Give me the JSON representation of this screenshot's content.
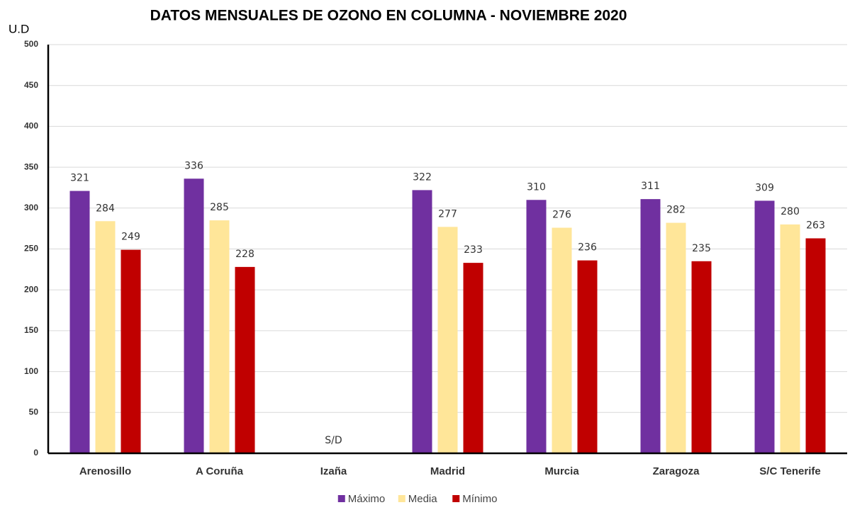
{
  "chart_data": {
    "type": "bar",
    "title": "DATOS MENSUALES DE OZONO EN COLUMNA - NOVIEMBRE 2020",
    "y_label": "U.D",
    "annotation": "S/D",
    "categories": [
      "Arenosillo",
      "A Coruña",
      "Izaña",
      "Madrid",
      "Murcia",
      "Zaragoza",
      "S/C Tenerife"
    ],
    "series": [
      {
        "name": "Máximo",
        "color": "#7030a0",
        "values": [
          321,
          336,
          null,
          322,
          310,
          311,
          309
        ]
      },
      {
        "name": "Media",
        "color": "#ffe699",
        "values": [
          284,
          285,
          null,
          277,
          276,
          282,
          280
        ]
      },
      {
        "name": "Mínimo",
        "color": "#c00000",
        "values": [
          249,
          228,
          null,
          233,
          236,
          235,
          263
        ]
      }
    ],
    "ylim": [
      0,
      500
    ],
    "yticks": [
      0,
      50,
      100,
      150,
      200,
      250,
      300,
      350,
      400,
      450,
      500
    ],
    "grid": true,
    "legend": "bottom"
  }
}
